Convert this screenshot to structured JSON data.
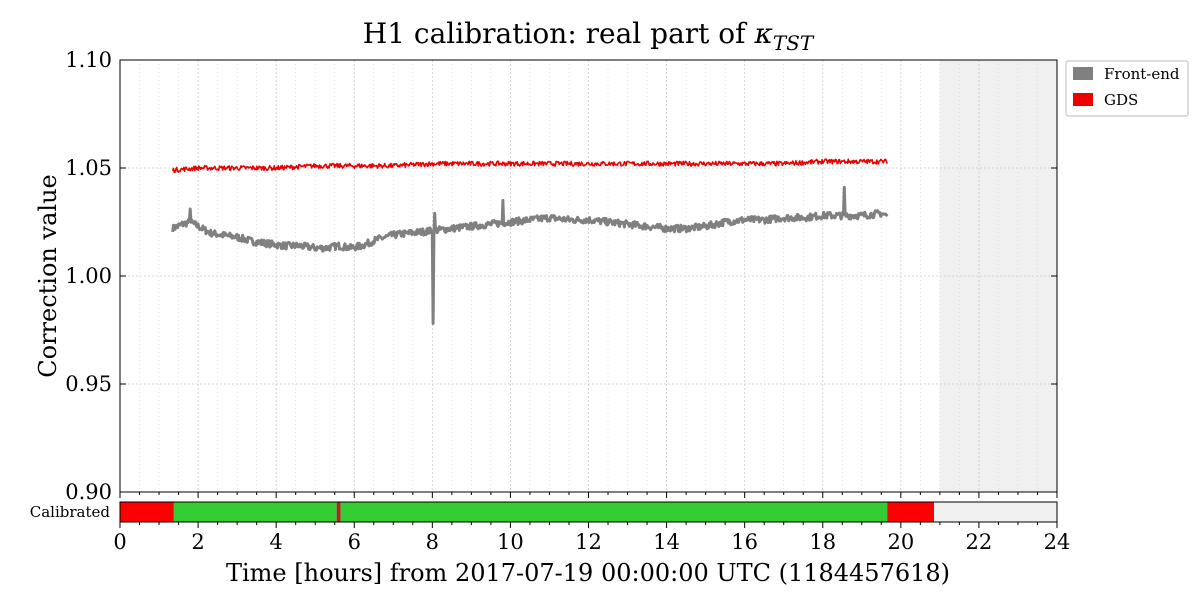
{
  "chart_data": {
    "type": "line",
    "title_main": "H1 calibration: real part of ",
    "title_symbol": "κ",
    "title_subscript": "TST",
    "xlabel": "Time [hours] from 2017-07-19 00:00:00 UTC (1184457618)",
    "ylabel": "Correction value",
    "xlim": [
      0,
      24
    ],
    "ylim": [
      0.9,
      1.1
    ],
    "xticks": [
      0,
      2,
      4,
      6,
      8,
      10,
      12,
      14,
      16,
      18,
      20,
      22,
      24
    ],
    "xtick_labels": [
      "0",
      "2",
      "4",
      "6",
      "8",
      "10",
      "12",
      "14",
      "16",
      "18",
      "20",
      "22",
      "24"
    ],
    "yticks": [
      0.9,
      0.95,
      1.0,
      1.05,
      1.1
    ],
    "ytick_labels": [
      "0.90",
      "0.95",
      "1.00",
      "1.05",
      "1.10"
    ],
    "grid": true,
    "legend_position": "outside-top-right",
    "future_region": {
      "x_start": 21.0,
      "x_end": 24.0,
      "color": "#f0f0f0"
    },
    "series": [
      {
        "name": "Front-end",
        "color": "#808080",
        "x": [
          1.35,
          1.6,
          1.8,
          2.0,
          2.3,
          2.6,
          3.0,
          3.4,
          3.8,
          4.2,
          4.6,
          5.0,
          5.3,
          5.6,
          5.9,
          6.2,
          6.6,
          7.0,
          7.5,
          8.0,
          8.5,
          9.0,
          9.5,
          10.0,
          10.5,
          11.0,
          11.5,
          12.0,
          12.5,
          13.0,
          13.5,
          14.0,
          14.5,
          15.0,
          15.5,
          16.0,
          16.5,
          17.0,
          17.5,
          18.0,
          18.5,
          19.0,
          19.5,
          19.65
        ],
        "y": [
          1.022,
          1.024,
          1.025,
          1.023,
          1.02,
          1.019,
          1.018,
          1.016,
          1.015,
          1.014,
          1.014,
          1.013,
          1.013,
          1.014,
          1.013,
          1.014,
          1.017,
          1.019,
          1.02,
          1.021,
          1.022,
          1.023,
          1.024,
          1.025,
          1.026,
          1.027,
          1.026,
          1.026,
          1.025,
          1.024,
          1.023,
          1.022,
          1.022,
          1.023,
          1.025,
          1.026,
          1.026,
          1.027,
          1.027,
          1.028,
          1.028,
          1.028,
          1.029,
          1.028
        ],
        "spikes": [
          {
            "x": 8.02,
            "y": 0.978
          },
          {
            "x": 8.05,
            "y": 1.029
          },
          {
            "x": 9.8,
            "y": 1.035
          },
          {
            "x": 18.55,
            "y": 1.041
          },
          {
            "x": 1.8,
            "y": 1.031
          }
        ]
      },
      {
        "name": "GDS",
        "color": "#ee0000",
        "x": [
          1.35,
          2.0,
          3.0,
          4.0,
          5.0,
          6.0,
          7.0,
          8.0,
          9.0,
          10.0,
          11.0,
          12.0,
          13.0,
          14.0,
          15.0,
          16.0,
          17.0,
          18.0,
          19.0,
          19.65
        ],
        "y": [
          1.049,
          1.05,
          1.05,
          1.05,
          1.051,
          1.051,
          1.051,
          1.052,
          1.052,
          1.052,
          1.052,
          1.052,
          1.052,
          1.052,
          1.052,
          1.052,
          1.052,
          1.053,
          1.053,
          1.053
        ]
      }
    ],
    "state_bar": {
      "label": "Calibrated",
      "segments": [
        {
          "start": 0.0,
          "end": 1.38,
          "color": "#ff0000"
        },
        {
          "start": 1.38,
          "end": 5.55,
          "color": "#33cc33"
        },
        {
          "start": 5.55,
          "end": 5.65,
          "color": "#b22222"
        },
        {
          "start": 5.65,
          "end": 19.65,
          "color": "#33cc33"
        },
        {
          "start": 19.65,
          "end": 20.85,
          "color": "#ff0000"
        },
        {
          "start": 20.85,
          "end": 24.0,
          "color": "#f0f0f0"
        }
      ]
    }
  }
}
